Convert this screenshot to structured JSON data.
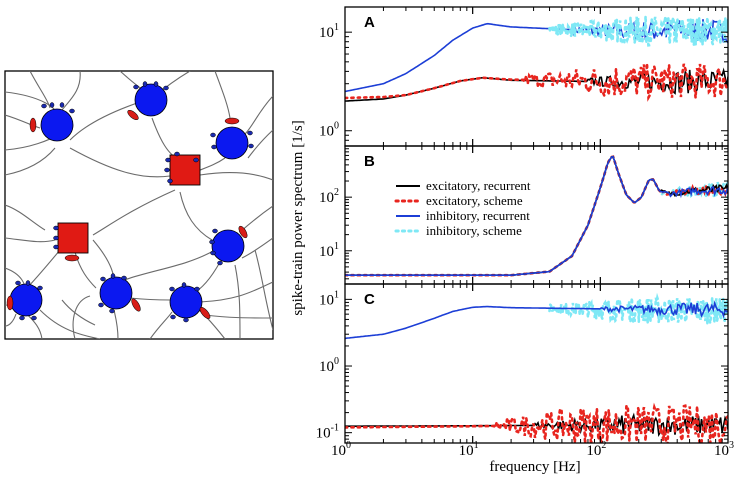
{
  "figure": {
    "ylabel": "spike-train power spectrum [1/s]",
    "xlabel": "frequency [Hz]",
    "xticks": [
      {
        "value": 1,
        "label": "10",
        "exp": "0"
      },
      {
        "value": 10,
        "label": "10",
        "exp": "1"
      },
      {
        "value": 100,
        "label": "10",
        "exp": "2"
      },
      {
        "value": 1000,
        "label": "10",
        "exp": "3"
      }
    ]
  },
  "legend": [
    {
      "label": "excitatory, recurrent",
      "color": "#000000",
      "style": "solid"
    },
    {
      "label": "excitatory, scheme",
      "color": "#e8251f",
      "style": "dotted"
    },
    {
      "label": "inhibitory, recurrent",
      "color": "#1c3ed6",
      "style": "solid"
    },
    {
      "label": "inhibitory, scheme",
      "color": "#7fe8f5",
      "style": "dotted"
    }
  ],
  "schematic": {
    "neuron_color": "#0b18f0",
    "hub_color": "#e01a14",
    "synapse_exc_color": "#d81d17",
    "synapse_inh_color": "#1a2ab0"
  },
  "chart_data": [
    {
      "type": "line",
      "panel": "A",
      "xscale": "log",
      "yscale": "log",
      "xlim": [
        1,
        1000
      ],
      "ylim": [
        0.7,
        18
      ],
      "yticks": [
        {
          "value": 1,
          "label": "10",
          "exp": "0"
        },
        {
          "value": 10,
          "label": "10",
          "exp": "1"
        }
      ],
      "series": [
        {
          "name": "inhibitory, recurrent",
          "color": "#1c3ed6",
          "style": "solid",
          "points": [
            [
              1,
              2.5
            ],
            [
              2,
              3.0
            ],
            [
              3,
              3.8
            ],
            [
              5,
              5.8
            ],
            [
              7,
              8.3
            ],
            [
              10,
              11.0
            ],
            [
              13,
              12.2
            ],
            [
              20,
              11.3
            ],
            [
              50,
              10.7
            ],
            [
              100,
              10.3
            ],
            [
              1000,
              10.3
            ]
          ],
          "noise_from": 60,
          "noise": 0.12
        },
        {
          "name": "inhibitory, scheme",
          "color": "#7fe8f5",
          "style": "dotted",
          "points": [
            [
              40,
              10.7
            ],
            [
              100,
              10.4
            ],
            [
              1000,
              10.3
            ]
          ],
          "noise_from": 40,
          "noise": 0.15
        },
        {
          "name": "excitatory, recurrent",
          "color": "#000000",
          "style": "solid",
          "points": [
            [
              1,
              2.0
            ],
            [
              2,
              2.1
            ],
            [
              3,
              2.3
            ],
            [
              5,
              2.7
            ],
            [
              8,
              3.2
            ],
            [
              12,
              3.45
            ],
            [
              20,
              3.25
            ],
            [
              100,
              3.15
            ],
            [
              1000,
              3.15
            ]
          ],
          "noise_from": 80,
          "noise": 0.12
        },
        {
          "name": "excitatory, scheme",
          "color": "#e8251f",
          "style": "dotted",
          "points": [
            [
              1,
              2.15
            ],
            [
              2,
              2.2
            ],
            [
              3,
              2.3
            ],
            [
              5,
              2.7
            ],
            [
              8,
              3.2
            ],
            [
              12,
              3.45
            ],
            [
              20,
              3.3
            ],
            [
              100,
              3.2
            ],
            [
              1000,
              3.2
            ]
          ],
          "noise_from": 25,
          "noise": 0.18
        }
      ]
    },
    {
      "type": "line",
      "panel": "B",
      "xscale": "log",
      "yscale": "log",
      "xlim": [
        1,
        1000
      ],
      "ylim": [
        2.4,
        900
      ],
      "yticks": [
        {
          "value": 10,
          "label": "10",
          "exp": "1"
        },
        {
          "value": 100,
          "label": "10",
          "exp": "2"
        }
      ],
      "series": [
        {
          "name": "inhibitory, scheme",
          "color": "#7fe8f5",
          "style": "dotted",
          "points": [
            [
              1,
              3.5
            ],
            [
              20,
              3.5
            ],
            [
              40,
              4.1
            ],
            [
              60,
              8
            ],
            [
              80,
              30
            ],
            [
              100,
              150
            ],
            [
              115,
              450
            ],
            [
              125,
              600
            ],
            [
              140,
              260
            ],
            [
              160,
              110
            ],
            [
              185,
              78
            ],
            [
              210,
              100
            ],
            [
              240,
              210
            ],
            [
              260,
              215
            ],
            [
              290,
              130
            ],
            [
              350,
              115
            ],
            [
              500,
              130
            ],
            [
              1000,
              140
            ]
          ],
          "noise_from": 300,
          "noise": 0.2
        },
        {
          "name": "excitatory, scheme",
          "color": "#e8251f",
          "style": "dotted",
          "points": [
            [
              1,
              3.5
            ],
            [
              20,
              3.5
            ],
            [
              40,
              4.1
            ],
            [
              60,
              8
            ],
            [
              80,
              30
            ],
            [
              100,
              150
            ],
            [
              115,
              450
            ],
            [
              125,
              600
            ],
            [
              140,
              260
            ],
            [
              160,
              110
            ],
            [
              185,
              78
            ],
            [
              210,
              100
            ],
            [
              240,
              210
            ],
            [
              260,
              215
            ],
            [
              290,
              130
            ],
            [
              350,
              115
            ],
            [
              500,
              130
            ],
            [
              1000,
              140
            ]
          ],
          "noise_from": 300,
          "noise": 0.12
        },
        {
          "name": "excitatory, recurrent",
          "color": "#000000",
          "style": "solid",
          "points": [
            [
              1,
              3.5
            ],
            [
              20,
              3.5
            ],
            [
              40,
              4.1
            ],
            [
              60,
              8
            ],
            [
              80,
              30
            ],
            [
              100,
              150
            ],
            [
              115,
              450
            ],
            [
              125,
              600
            ],
            [
              140,
              260
            ],
            [
              160,
              110
            ],
            [
              185,
              78
            ],
            [
              210,
              100
            ],
            [
              240,
              210
            ],
            [
              260,
              215
            ],
            [
              290,
              130
            ],
            [
              350,
              115
            ],
            [
              500,
              130
            ],
            [
              1000,
              140
            ]
          ],
          "noise_from": 300,
          "noise": 0.12
        },
        {
          "name": "inhibitory, recurrent",
          "color": "#1c3ed6",
          "style": "solid",
          "points": [
            [
              1,
              3.5
            ],
            [
              20,
              3.5
            ],
            [
              40,
              4.1
            ],
            [
              60,
              8
            ],
            [
              80,
              30
            ],
            [
              100,
              150
            ],
            [
              115,
              450
            ],
            [
              125,
              600
            ],
            [
              140,
              260
            ],
            [
              160,
              110
            ],
            [
              185,
              78
            ],
            [
              210,
              100
            ],
            [
              240,
              210
            ],
            [
              260,
              215
            ],
            [
              290,
              130
            ],
            [
              350,
              115
            ],
            [
              500,
              130
            ],
            [
              1000,
              140
            ]
          ],
          "noise_from": 300,
          "noise": 0.12
        }
      ]
    },
    {
      "type": "line",
      "panel": "C",
      "xscale": "log",
      "yscale": "log",
      "xlim": [
        1,
        1000
      ],
      "ylim": [
        0.07,
        17
      ],
      "yticks": [
        {
          "value": 0.1,
          "label": "10",
          "exp": "-1"
        },
        {
          "value": 1,
          "label": "10",
          "exp": "0"
        },
        {
          "value": 10,
          "label": "10",
          "exp": "1"
        }
      ],
      "series": [
        {
          "name": "inhibitory, scheme",
          "color": "#7fe8f5",
          "style": "dotted",
          "points": [
            [
              40,
              7.3
            ],
            [
              100,
              7.0
            ],
            [
              1000,
              6.8
            ]
          ],
          "noise_from": 40,
          "noise": 0.2
        },
        {
          "name": "inhibitory, recurrent",
          "color": "#1c3ed6",
          "style": "solid",
          "points": [
            [
              1,
              2.6
            ],
            [
              2,
              3.0
            ],
            [
              3,
              3.7
            ],
            [
              5,
              5.2
            ],
            [
              7,
              6.6
            ],
            [
              10,
              7.6
            ],
            [
              13,
              7.8
            ],
            [
              20,
              7.5
            ],
            [
              100,
              7.2
            ],
            [
              1000,
              7.0
            ]
          ],
          "noise_from": 100,
          "noise": 0.1
        },
        {
          "name": "excitatory, recurrent",
          "color": "#000000",
          "style": "solid",
          "points": [
            [
              1,
              0.125
            ],
            [
              10,
              0.127
            ],
            [
              100,
              0.13
            ],
            [
              1000,
              0.13
            ]
          ],
          "noise_from": 30,
          "noise": 0.15
        },
        {
          "name": "excitatory, scheme",
          "color": "#e8251f",
          "style": "dotted",
          "points": [
            [
              1,
              0.12
            ],
            [
              10,
              0.125
            ],
            [
              100,
              0.13
            ],
            [
              1000,
              0.13
            ]
          ],
          "noise_from": 15,
          "noise": 0.3
        }
      ]
    }
  ]
}
